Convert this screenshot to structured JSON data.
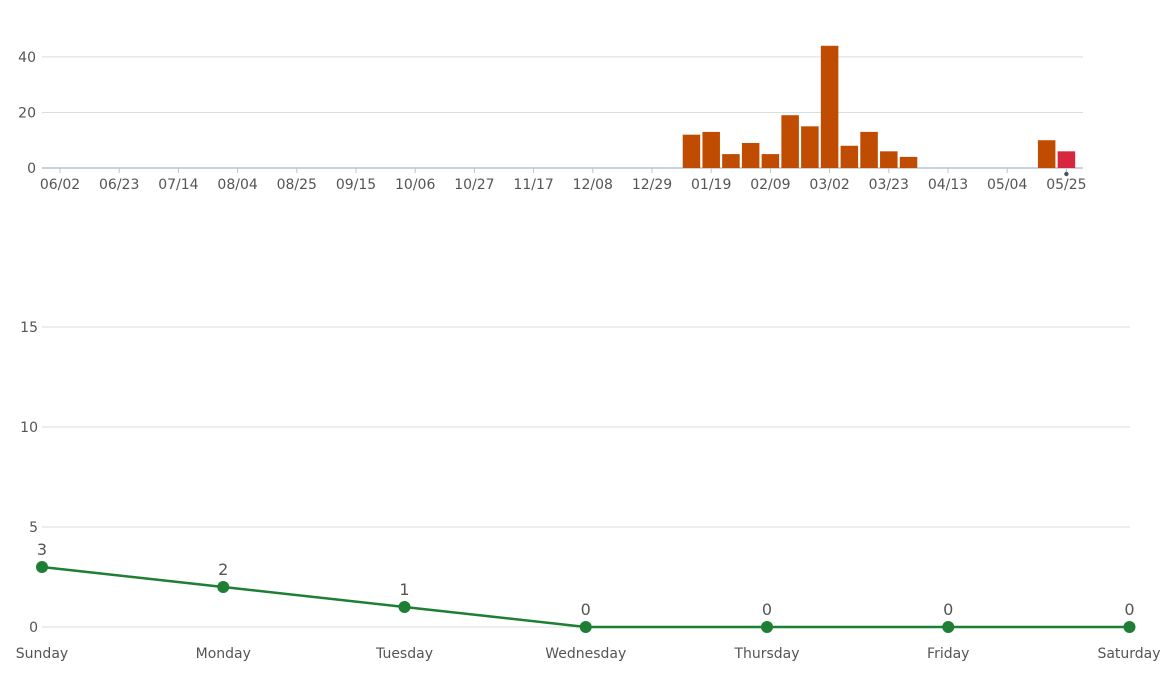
{
  "chart_data": [
    {
      "type": "bar",
      "title": "",
      "xlabel": "",
      "ylabel": "",
      "ylim": [
        0,
        45
      ],
      "yticks": [
        0,
        20,
        40
      ],
      "grid": true,
      "x_ticks": [
        "06/02",
        "06/23",
        "07/14",
        "08/04",
        "08/25",
        "09/15",
        "10/06",
        "10/27",
        "11/17",
        "12/08",
        "12/29",
        "01/19",
        "02/09",
        "03/02",
        "03/23",
        "04/13",
        "05/04",
        "05/25"
      ],
      "values": [
        0,
        0,
        0,
        0,
        0,
        0,
        0,
        0,
        0,
        0,
        0,
        0,
        0,
        0,
        0,
        0,
        0,
        0,
        0,
        0,
        0,
        0,
        0,
        0,
        0,
        0,
        0,
        0,
        0,
        0,
        0,
        0,
        12,
        13,
        5,
        9,
        5,
        19,
        15,
        44,
        8,
        13,
        6,
        4,
        0,
        0,
        0,
        0,
        0,
        0,
        10,
        6
      ],
      "colors": {
        "bar": "#bf4c00",
        "highlight": "#d7263d"
      },
      "highlight_index": 51
    },
    {
      "type": "line",
      "title": "",
      "xlabel": "",
      "ylabel": "",
      "ylim": [
        0,
        17
      ],
      "yticks": [
        0,
        5,
        10,
        15
      ],
      "grid": true,
      "categories": [
        "Sunday",
        "Monday",
        "Tuesday",
        "Wednesday",
        "Thursday",
        "Friday",
        "Saturday"
      ],
      "values": [
        3,
        2,
        1,
        0,
        0,
        0,
        0
      ],
      "colors": {
        "line": "#1e7e34"
      }
    }
  ]
}
